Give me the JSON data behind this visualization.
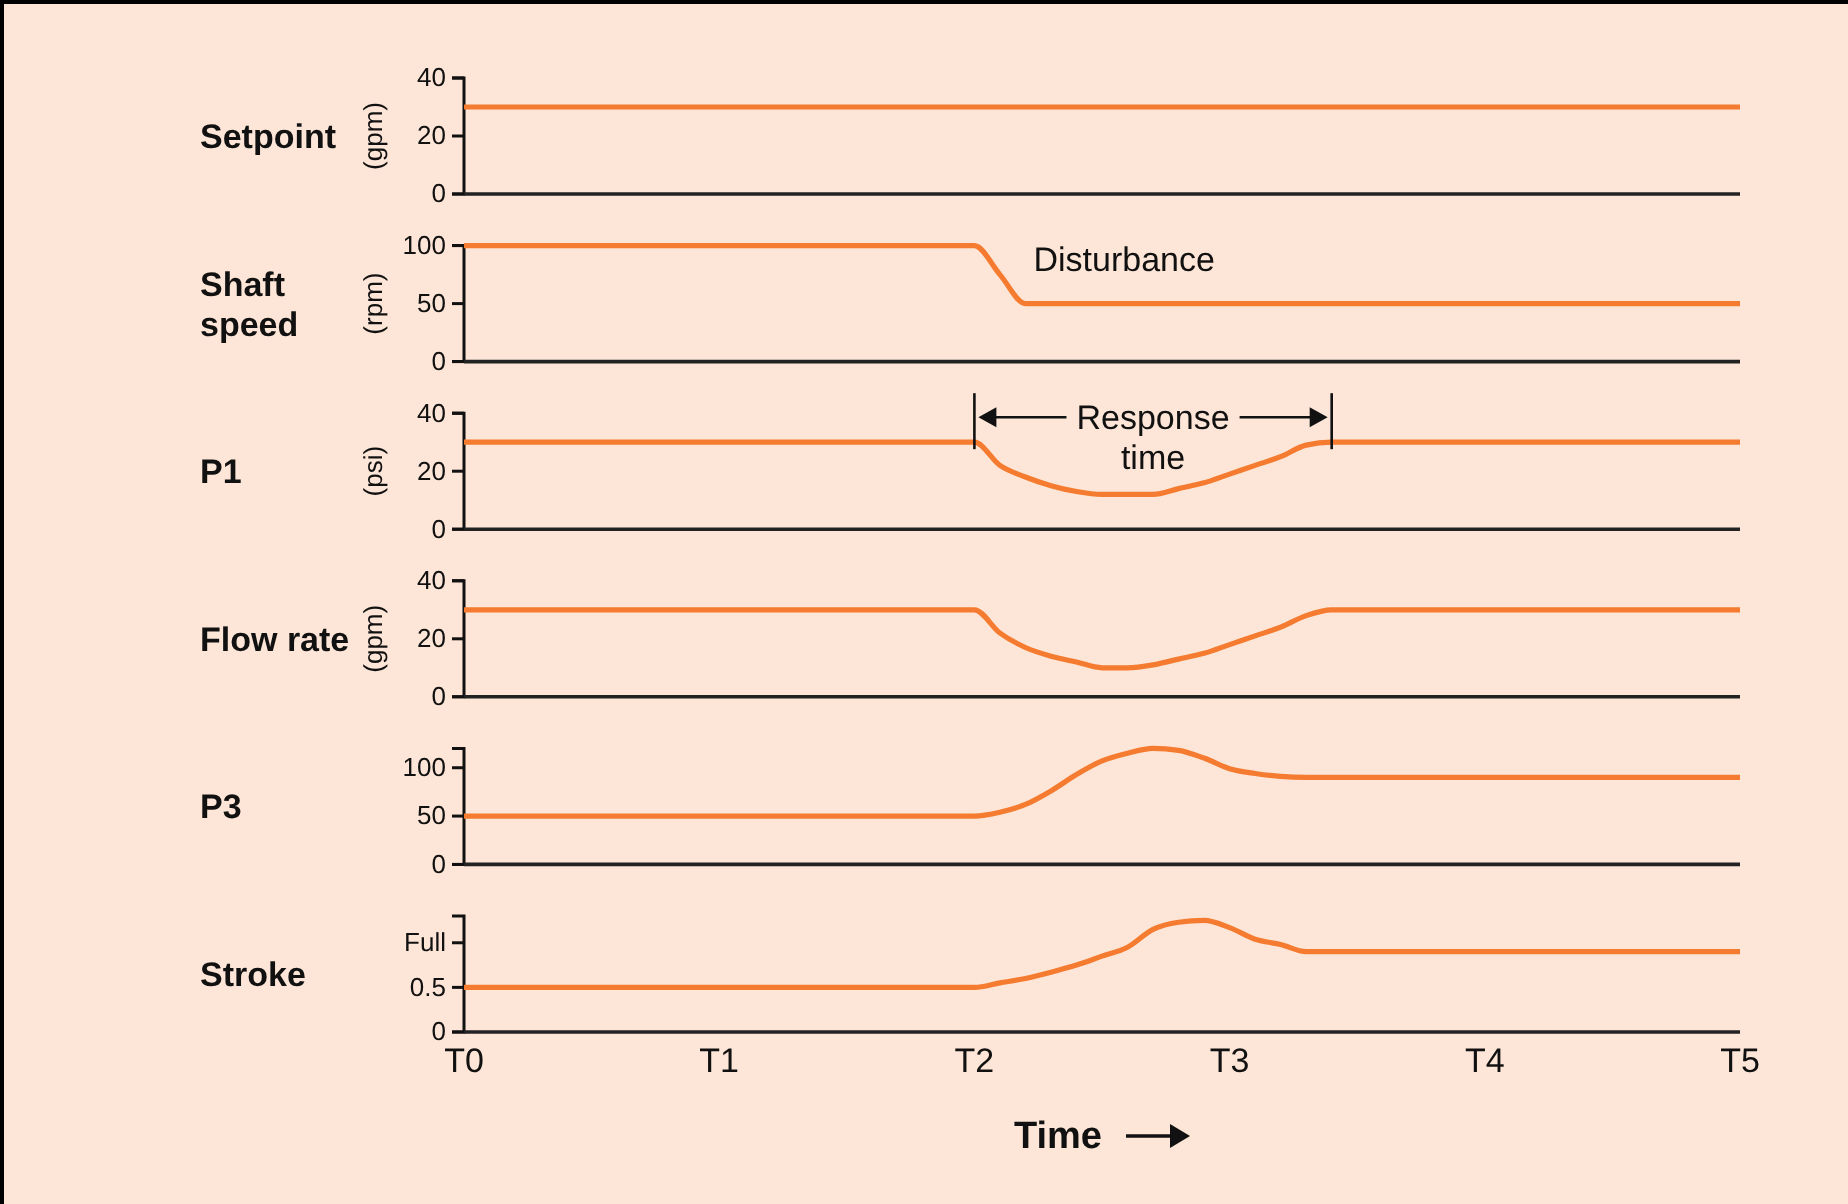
{
  "chart_data": [
    {
      "type": "line",
      "title": "Setpoint",
      "ylabel": "(gpm)",
      "ylim": [
        0,
        40
      ],
      "yticks": [
        0,
        20,
        40
      ],
      "tick_labels": "y",
      "categories": [
        null,
        null,
        null,
        null,
        null,
        null,
        null,
        null,
        null,
        null,
        null,
        null,
        null,
        null,
        null,
        null,
        null,
        null,
        null,
        null,
        null,
        null,
        null,
        null,
        null,
        null,
        null,
        null,
        null,
        null,
        null,
        null,
        null,
        null,
        null,
        null,
        null,
        null,
        null,
        null,
        null,
        null,
        null,
        null,
        null,
        null,
        null,
        null,
        null,
        null,
        null
      ],
      "series": [
        {
          "color": "#f47b2f",
          "values": [
            30,
            30,
            30,
            30,
            30,
            30,
            30,
            30,
            30,
            30,
            30,
            30,
            30,
            30,
            30,
            30,
            30,
            30,
            30,
            30,
            30,
            30,
            30,
            30,
            30,
            30,
            30,
            30,
            30,
            30,
            30,
            30,
            30,
            30,
            30,
            30,
            30,
            30,
            30,
            30,
            30,
            30,
            30,
            30,
            30,
            30,
            30,
            30,
            30,
            30,
            30
          ]
        }
      ]
    },
    {
      "type": "line",
      "title": "Shaft speed",
      "ylabel": "(rpm)",
      "ylim": [
        0,
        100
      ],
      "yticks": [
        0,
        50,
        100
      ],
      "tick_labels": "y",
      "categories": [
        null,
        null,
        null,
        null,
        null,
        null,
        null,
        null,
        null,
        null,
        null,
        null,
        null,
        null,
        null,
        null,
        null,
        null,
        null,
        null,
        null,
        null,
        null,
        null,
        null,
        null,
        null,
        null,
        null,
        null,
        null,
        null,
        null,
        null,
        null,
        null,
        null,
        null,
        null,
        null,
        null,
        null,
        null,
        null,
        null,
        null,
        null,
        null,
        null,
        null,
        null
      ],
      "annotations": [
        "Disturbance"
      ],
      "series": [
        {
          "color": "#f47b2f",
          "values": [
            100,
            100,
            100,
            100,
            100,
            100,
            100,
            100,
            100,
            100,
            100,
            100,
            100,
            100,
            100,
            100,
            100,
            100,
            100,
            100,
            100,
            75,
            50,
            50,
            50,
            50,
            50,
            50,
            50,
            50,
            50,
            50,
            50,
            50,
            50,
            50,
            50,
            50,
            50,
            50,
            50,
            50,
            50,
            50,
            50,
            50,
            50,
            50,
            50,
            50,
            50
          ]
        }
      ]
    },
    {
      "type": "line",
      "title": "P1",
      "ylabel": "(psi)",
      "ylim": [
        0,
        40
      ],
      "yticks": [
        0,
        20,
        40
      ],
      "tick_labels": "y",
      "categories": [
        null,
        null,
        null,
        null,
        null,
        null,
        null,
        null,
        null,
        null,
        null,
        null,
        null,
        null,
        null,
        null,
        null,
        null,
        null,
        null,
        null,
        null,
        null,
        null,
        null,
        null,
        null,
        null,
        null,
        null,
        null,
        null,
        null,
        null,
        null,
        null,
        null,
        null,
        null,
        null,
        null,
        null,
        null,
        null,
        null,
        null,
        null,
        null,
        null,
        null,
        null
      ],
      "annotations": [
        "Response time"
      ],
      "series": [
        {
          "color": "#f47b2f",
          "values": [
            30,
            30,
            30,
            30,
            30,
            30,
            30,
            30,
            30,
            30,
            30,
            30,
            30,
            30,
            30,
            30,
            30,
            30,
            30,
            30,
            30,
            22,
            18,
            15,
            13,
            12,
            12,
            12,
            14,
            16,
            19,
            22,
            25,
            29,
            30,
            30,
            30,
            30,
            30,
            30,
            30,
            30,
            30,
            30,
            30,
            30,
            30,
            30,
            30,
            30,
            30
          ]
        }
      ]
    },
    {
      "type": "line",
      "title": "Flow rate",
      "ylabel": "(gpm)",
      "ylim": [
        0,
        40
      ],
      "yticks": [
        0,
        20,
        40
      ],
      "tick_labels": "y",
      "categories": [
        null,
        null,
        null,
        null,
        null,
        null,
        null,
        null,
        null,
        null,
        null,
        null,
        null,
        null,
        null,
        null,
        null,
        null,
        null,
        null,
        null,
        null,
        null,
        null,
        null,
        null,
        null,
        null,
        null,
        null,
        null,
        null,
        null,
        null,
        null,
        null,
        null,
        null,
        null,
        null,
        null,
        null,
        null,
        null,
        null,
        null,
        null,
        null,
        null,
        null,
        null
      ],
      "series": [
        {
          "color": "#f47b2f",
          "values": [
            30,
            30,
            30,
            30,
            30,
            30,
            30,
            30,
            30,
            30,
            30,
            30,
            30,
            30,
            30,
            30,
            30,
            30,
            30,
            30,
            30,
            22,
            17,
            14,
            12,
            10,
            10,
            11,
            13,
            15,
            18,
            21,
            24,
            28,
            30,
            30,
            30,
            30,
            30,
            30,
            30,
            30,
            30,
            30,
            30,
            30,
            30,
            30,
            30,
            30,
            30
          ]
        }
      ]
    },
    {
      "type": "line",
      "title": "P3",
      "ylim": [
        0,
        120
      ],
      "yticks": [
        0,
        50,
        100
      ],
      "tick_labels": "y",
      "categories": [
        null,
        null,
        null,
        null,
        null,
        null,
        null,
        null,
        null,
        null,
        null,
        null,
        null,
        null,
        null,
        null,
        null,
        null,
        null,
        null,
        null,
        null,
        null,
        null,
        null,
        null,
        null,
        null,
        null,
        null,
        null,
        null,
        null,
        null,
        null,
        null,
        null,
        null,
        null,
        null,
        null,
        null,
        null,
        null,
        null,
        null,
        null,
        null,
        null,
        null,
        null
      ],
      "series": [
        {
          "color": "#f47b2f",
          "values": [
            50,
            50,
            50,
            50,
            50,
            50,
            50,
            50,
            50,
            50,
            50,
            50,
            50,
            50,
            50,
            50,
            50,
            50,
            50,
            50,
            50,
            54,
            62,
            76,
            93,
            107,
            115,
            120,
            118,
            110,
            99,
            94,
            91,
            90,
            90,
            90,
            90,
            90,
            90,
            90,
            90,
            90,
            90,
            90,
            90,
            90,
            90,
            90,
            90,
            90,
            90
          ]
        }
      ]
    },
    {
      "type": "line",
      "title": "Stroke",
      "xlabel": "Time",
      "ylim": [
        0,
        1.3
      ],
      "yticks": [
        0,
        0.5,
        {
          "value": 1,
          "label": "Full"
        }
      ],
      "categories": [
        "T0",
        null,
        null,
        null,
        null,
        null,
        null,
        null,
        null,
        null,
        "T1",
        null,
        null,
        null,
        null,
        null,
        null,
        null,
        null,
        null,
        "T2",
        null,
        null,
        null,
        null,
        null,
        null,
        null,
        null,
        null,
        "T3",
        null,
        null,
        null,
        null,
        null,
        null,
        null,
        null,
        null,
        "T4",
        null,
        null,
        null,
        null,
        null,
        null,
        null,
        null,
        null,
        "T5"
      ],
      "series": [
        {
          "color": "#f47b2f",
          "values": [
            0.5,
            0.5,
            0.5,
            0.5,
            0.5,
            0.5,
            0.5,
            0.5,
            0.5,
            0.5,
            0.5,
            0.5,
            0.5,
            0.5,
            0.5,
            0.5,
            0.5,
            0.5,
            0.5,
            0.5,
            0.5,
            0.55,
            0.6,
            0.67,
            0.75,
            0.85,
            0.95,
            1.15,
            1.23,
            1.25,
            1.17,
            1.04,
            0.98,
            0.9,
            0.9,
            0.9,
            0.9,
            0.9,
            0.9,
            0.9,
            0.9,
            0.9,
            0.9,
            0.9,
            0.9,
            0.9,
            0.9,
            0.9,
            0.9,
            0.9,
            0.9
          ]
        }
      ]
    }
  ]
}
